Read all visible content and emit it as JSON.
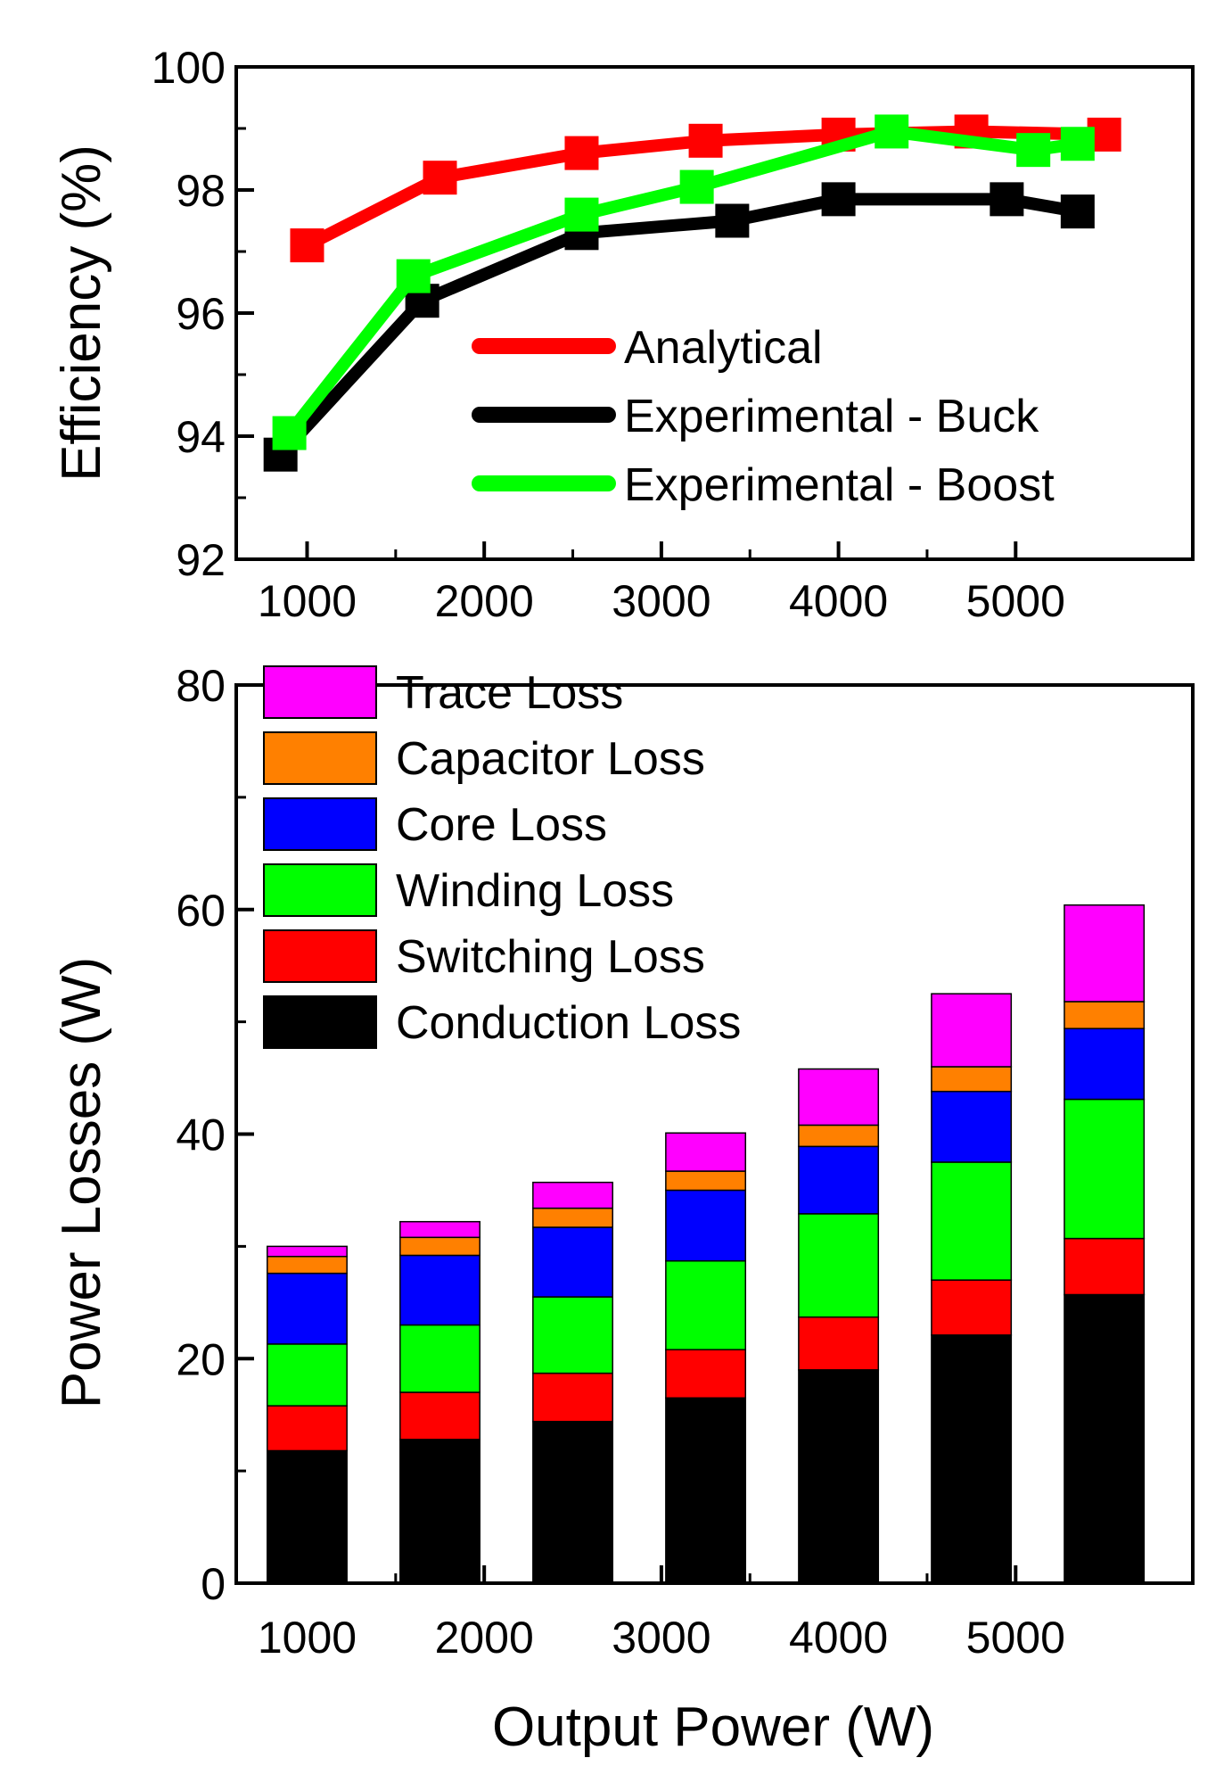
{
  "figure_title": "",
  "chart_data": [
    {
      "type": "line",
      "title": "",
      "xlabel": "",
      "ylabel": "Efficiency (%)",
      "xlim": [
        600,
        6000
      ],
      "ylim": [
        92,
        100
      ],
      "x_ticks": [
        1000,
        2000,
        3000,
        4000,
        5000
      ],
      "y_ticks": [
        92,
        94,
        96,
        98,
        100
      ],
      "legend_position": "center-right",
      "grid": false,
      "series": [
        {
          "name": "Analytical",
          "color": "#ff0000",
          "points": [
            [
              1000,
              97.1
            ],
            [
              1750,
              98.2
            ],
            [
              2550,
              98.6
            ],
            [
              3250,
              98.8
            ],
            [
              4000,
              98.9
            ],
            [
              4750,
              98.95
            ],
            [
              5500,
              98.9
            ]
          ]
        },
        {
          "name": "Experimental - Buck",
          "color": "#000000",
          "points": [
            [
              850,
              93.7
            ],
            [
              1650,
              96.2
            ],
            [
              2550,
              97.3
            ],
            [
              3400,
              97.5
            ],
            [
              4000,
              97.85
            ],
            [
              4950,
              97.85
            ],
            [
              5350,
              97.65
            ]
          ]
        },
        {
          "name": "Experimental - Boost",
          "color": "#00ff00",
          "points": [
            [
              900,
              94.05
            ],
            [
              1600,
              96.6
            ],
            [
              2550,
              97.6
            ],
            [
              3200,
              98.05
            ],
            [
              4300,
              98.95
            ],
            [
              5100,
              98.65
            ],
            [
              5350,
              98.75
            ]
          ]
        }
      ]
    },
    {
      "type": "bar",
      "stacked": true,
      "title": "",
      "xlabel": "Output Power (W)",
      "ylabel": "Power Losses (W)",
      "xlim": [
        600,
        6000
      ],
      "ylim": [
        0,
        80
      ],
      "x_ticks": [
        1000,
        2000,
        3000,
        4000,
        5000
      ],
      "y_ticks": [
        0,
        20,
        40,
        60,
        80
      ],
      "legend_position": "top-left",
      "grid": false,
      "x": [
        1000,
        1750,
        2500,
        3250,
        4000,
        4750,
        5500
      ],
      "bar_width": 450,
      "series": [
        {
          "name": "Conduction Loss",
          "color": "#000000",
          "values": [
            11.8,
            12.8,
            14.4,
            16.5,
            19.0,
            22.1,
            25.7
          ]
        },
        {
          "name": "Switching Loss",
          "color": "#ff0000",
          "values": [
            4.0,
            4.2,
            4.3,
            4.3,
            4.7,
            4.9,
            5.0
          ]
        },
        {
          "name": "Winding Loss",
          "color": "#00ff00",
          "values": [
            5.5,
            6.0,
            6.8,
            7.9,
            9.2,
            10.5,
            12.4
          ]
        },
        {
          "name": "Core Loss",
          "color": "#0000ff",
          "values": [
            6.3,
            6.2,
            6.2,
            6.3,
            6.0,
            6.3,
            6.3
          ]
        },
        {
          "name": "Capacitor Loss",
          "color": "#ff8000",
          "values": [
            1.5,
            1.6,
            1.7,
            1.7,
            1.9,
            2.2,
            2.4
          ]
        },
        {
          "name": "Trace Loss",
          "color": "#ff00ff",
          "values": [
            0.9,
            1.4,
            2.3,
            3.4,
            5.0,
            6.5,
            8.6
          ]
        }
      ],
      "legend_order": [
        "Trace Loss",
        "Capacitor Loss",
        "Core Loss",
        "Winding Loss",
        "Switching Loss",
        "Conduction Loss"
      ]
    }
  ]
}
